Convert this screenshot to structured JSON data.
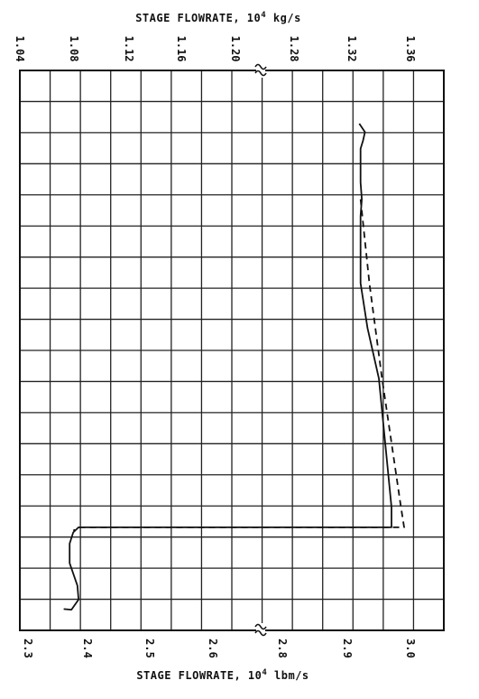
{
  "chart_data": {
    "type": "line",
    "top_axis": {
      "title": "STAGE FLOWRATE, 10",
      "exponent": "4",
      "unit": " kg/s",
      "ticks": [
        "1.04",
        "1.08",
        "1.12",
        "1.16",
        "1.20",
        "1.28",
        "1.32",
        "1.36"
      ]
    },
    "bottom_axis": {
      "title": "STAGE FLOWRATE, 10",
      "exponent": "4",
      "unit": " lbm/s",
      "ticks": [
        "2.3",
        "2.4",
        "2.5",
        "2.6",
        "2.8",
        "2.9",
        "3.0"
      ]
    },
    "x_unit": "10^4 lbm/s",
    "xlim": [
      2.3,
      3.05
    ],
    "axis_break": "between 2.6 and 2.8 lbm/s (1.20 and 1.28 kg/s)",
    "grid": true,
    "series": [
      {
        "style": "solid",
        "points": [
          [
            2.919,
            0.095
          ],
          [
            2.928,
            0.11
          ],
          [
            2.925,
            0.125
          ],
          [
            2.921,
            0.14
          ],
          [
            2.921,
            0.2
          ],
          [
            2.923,
            0.23
          ],
          [
            2.921,
            0.26
          ],
          [
            2.921,
            0.38
          ],
          [
            2.932,
            0.46
          ],
          [
            2.95,
            0.55
          ],
          [
            2.97,
            0.78
          ],
          [
            2.97,
            0.816
          ],
          [
            2.385,
            0.816
          ],
          [
            2.376,
            0.825
          ],
          [
            2.37,
            0.845
          ],
          [
            2.37,
            0.88
          ],
          [
            2.383,
            0.92
          ],
          [
            2.385,
            0.945
          ],
          [
            2.373,
            0.963
          ],
          [
            2.36,
            0.962
          ]
        ]
      },
      {
        "style": "dashed",
        "points": [
          [
            2.921,
            0.23
          ],
          [
            2.935,
            0.38
          ],
          [
            2.955,
            0.55
          ],
          [
            2.985,
            0.78
          ],
          [
            2.99,
            0.816
          ],
          [
            2.387,
            0.816
          ],
          [
            2.376,
            0.822
          ]
        ]
      }
    ]
  }
}
